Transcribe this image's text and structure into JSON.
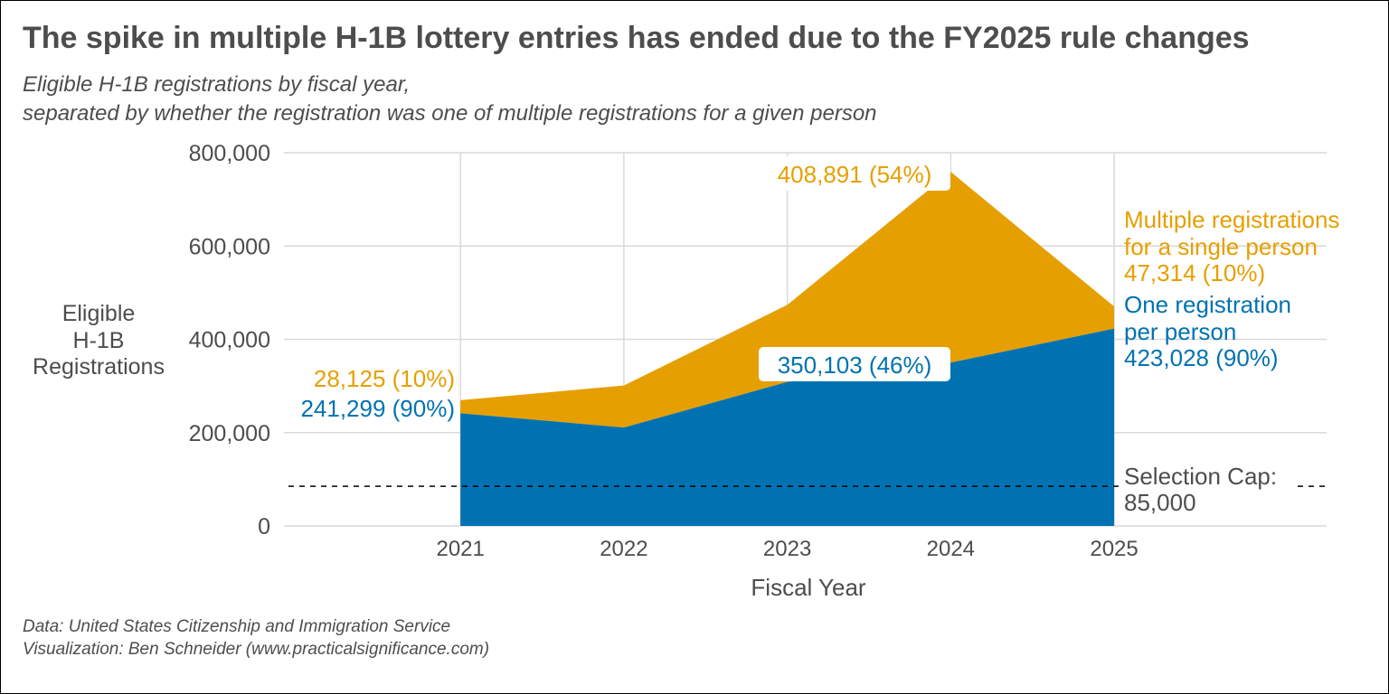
{
  "chart_data": {
    "type": "area",
    "title": "The spike in multiple H-1B lottery entries has ended due to the FY2025 rule changes",
    "subtitle_lines": [
      "Eligible H-1B registrations by fiscal year,",
      "separated by whether the registration was one of multiple registrations for a given person"
    ],
    "xlabel": "Fiscal Year",
    "ylabel_lines": [
      "Eligible",
      "H-1B",
      "Registrations"
    ],
    "x": [
      2021,
      2022,
      2023,
      2024,
      2025
    ],
    "x_tick_labels": [
      "2021",
      "2022",
      "2023",
      "2024",
      "2025"
    ],
    "y_tick_values": [
      0,
      200000,
      400000,
      600000,
      800000
    ],
    "y_tick_labels": [
      "0",
      "200,000",
      "400,000",
      "600,000",
      "800,000"
    ],
    "ylim": [
      0,
      800000
    ],
    "xlim": [
      2019.92,
      2026.3
    ],
    "stacked": true,
    "series": [
      {
        "key": "one",
        "values": [
          241299,
          211000,
          308613,
          350103,
          423028
        ],
        "color": "#0072B2",
        "label_lines": [
          "One registration",
          "per person",
          "423,028 (90%)"
        ]
      },
      {
        "key": "multiple",
        "values": [
          28125,
          90000,
          165180,
          408891,
          47314
        ],
        "color": "#E69F00",
        "label_lines": [
          "Multiple registrations",
          "for a single person",
          "47,314 (10%)"
        ]
      }
    ],
    "annotations": {
      "left_multiple": "28,125 (10%)",
      "left_one": "241,299 (90%)",
      "mid_multiple": "408,891 (54%)",
      "mid_one": "350,103 (46%)"
    },
    "cap": {
      "value": 85000,
      "label_lines": [
        "Selection Cap:",
        "85,000"
      ]
    },
    "grid": true,
    "caption_lines": [
      "Data: United States Citizenship and Immigration Service",
      "Visualization: Ben Schneider (www.practicalsignificance.com)"
    ],
    "colors": {
      "text": "#4d4d4d",
      "grid": "#d9d9d9",
      "axis_text": "#4d4d4d"
    }
  }
}
